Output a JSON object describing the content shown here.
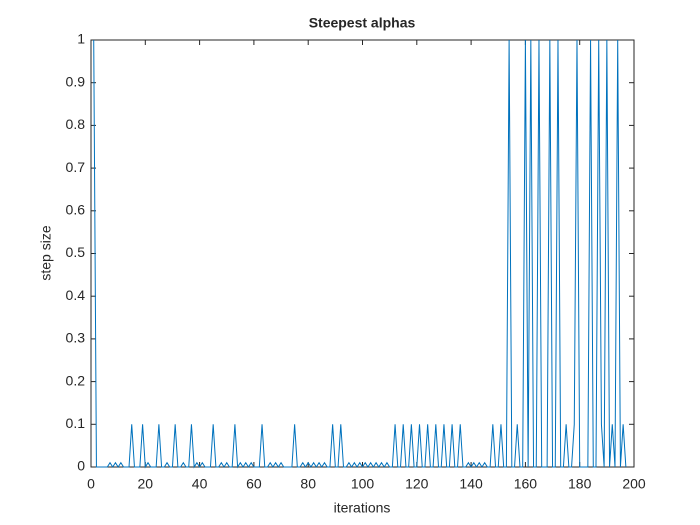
{
  "chart_data": {
    "type": "line",
    "title": "Steepest alphas",
    "x_label": "iterations",
    "y_label": "step size",
    "color": "#0072bd",
    "x": [
      1,
      2,
      3,
      4,
      5,
      6,
      7,
      8,
      9,
      10,
      11,
      12,
      13,
      14,
      15,
      16,
      17,
      18,
      19,
      20,
      21,
      22,
      23,
      24,
      25,
      26,
      27,
      28,
      29,
      30,
      31,
      32,
      33,
      34,
      35,
      36,
      37,
      38,
      39,
      40,
      41,
      42,
      43,
      44,
      45,
      46,
      47,
      48,
      49,
      50,
      51,
      52,
      53,
      54,
      55,
      56,
      57,
      58,
      59,
      60,
      61,
      62,
      63,
      64,
      65,
      66,
      67,
      68,
      69,
      70,
      71,
      72,
      73,
      74,
      75,
      76,
      77,
      78,
      79,
      80,
      81,
      82,
      83,
      84,
      85,
      86,
      87,
      88,
      89,
      90,
      91,
      92,
      93,
      94,
      95,
      96,
      97,
      98,
      99,
      100,
      101,
      102,
      103,
      104,
      105,
      106,
      107,
      108,
      109,
      110,
      111,
      112,
      113,
      114,
      115,
      116,
      117,
      118,
      119,
      120,
      121,
      122,
      123,
      124,
      125,
      126,
      127,
      128,
      129,
      130,
      131,
      132,
      133,
      134,
      135,
      136,
      137,
      138,
      139,
      140,
      141,
      142,
      143,
      144,
      145,
      146,
      147,
      148,
      149,
      150,
      151,
      152,
      153,
      154,
      155,
      156,
      157,
      158,
      159,
      160,
      161,
      162,
      163,
      164,
      165,
      166,
      167,
      168,
      169,
      170,
      171,
      172,
      173,
      174,
      175,
      176,
      177,
      178,
      179,
      180,
      181,
      182,
      183,
      184,
      185,
      186,
      187,
      188,
      189,
      190,
      191,
      192,
      193,
      194,
      195,
      196,
      197
    ],
    "values": [
      1,
      0,
      0,
      0,
      0,
      0,
      0.01,
      0,
      0.01,
      0,
      0.01,
      0,
      0,
      0,
      0.1,
      0,
      0,
      0,
      0.1,
      0,
      0.01,
      0,
      0,
      0,
      0.1,
      0,
      0,
      0.01,
      0,
      0,
      0.1,
      0,
      0,
      0.01,
      0,
      0,
      0.1,
      0,
      0.01,
      0,
      0.01,
      0,
      0,
      0,
      0.1,
      0,
      0,
      0.01,
      0,
      0.01,
      0,
      0,
      0.1,
      0,
      0.01,
      0,
      0.01,
      0,
      0.01,
      0,
      0,
      0,
      0.1,
      0,
      0,
      0.01,
      0,
      0.01,
      0,
      0.01,
      0,
      0,
      0,
      0,
      0.1,
      0,
      0,
      0.01,
      0,
      0.01,
      0,
      0.01,
      0,
      0.01,
      0,
      0.01,
      0,
      0,
      0.1,
      0,
      0,
      0.1,
      0,
      0,
      0.01,
      0,
      0.01,
      0,
      0.01,
      0,
      0.01,
      0,
      0.01,
      0,
      0.01,
      0,
      0.01,
      0,
      0.01,
      0,
      0,
      0.1,
      0,
      0,
      0.1,
      0,
      0,
      0.1,
      0,
      0,
      0.1,
      0,
      0,
      0.1,
      0,
      0,
      0.1,
      0,
      0,
      0.1,
      0,
      0,
      0.1,
      0,
      0,
      0.1,
      0,
      0,
      0.01,
      0,
      0.01,
      0,
      0.01,
      0,
      0.01,
      0,
      0,
      0.1,
      0,
      0,
      0.1,
      0,
      0,
      1,
      0,
      0,
      0.1,
      0,
      0,
      1,
      0,
      1,
      0,
      0,
      1,
      0,
      0,
      0,
      1,
      0,
      0,
      1,
      0,
      0,
      0.1,
      0,
      0,
      0.1,
      1,
      0,
      0,
      0,
      0,
      1,
      0,
      0,
      1,
      0.1,
      0,
      1,
      0,
      0.1,
      0,
      1,
      0,
      0.1,
      0
    ],
    "xlim": [
      0,
      200
    ],
    "xticks": [
      0,
      20,
      40,
      60,
      80,
      100,
      120,
      140,
      160,
      180,
      200
    ],
    "ylim": [
      0,
      1
    ],
    "yticks": [
      0,
      0.1,
      0.2,
      0.3,
      0.4,
      0.5,
      0.6,
      0.7,
      0.8,
      0.9,
      1
    ]
  }
}
